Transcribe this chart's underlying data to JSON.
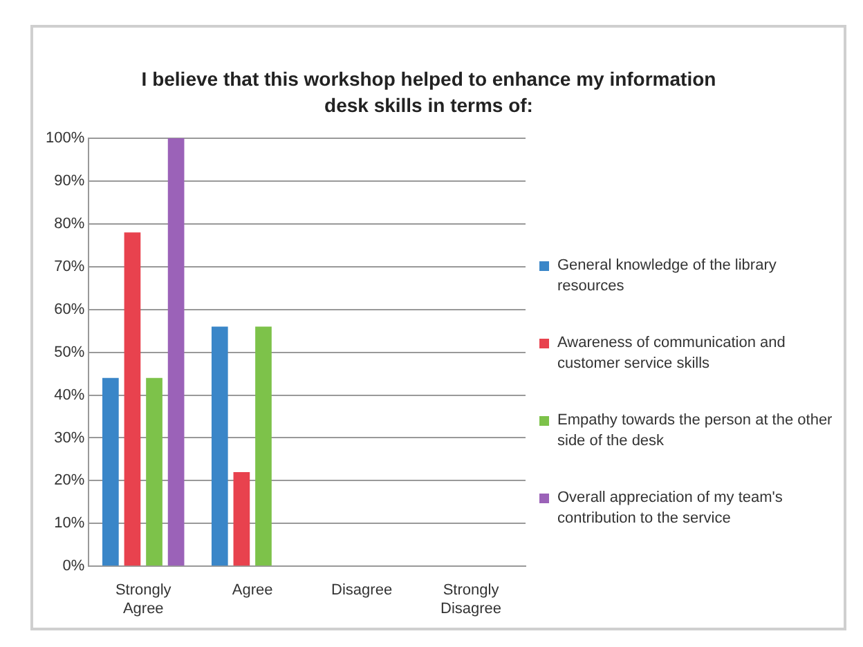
{
  "chart_data": {
    "type": "bar",
    "title": "I believe that this workshop helped to enhance my information desk skills in terms of:",
    "categories": [
      "Strongly Agree",
      "Agree",
      "Disagree",
      "Strongly Disagree"
    ],
    "series": [
      {
        "name": "General knowledge of the library resources",
        "color": "#3a86c8",
        "values": [
          44,
          56,
          0,
          0
        ]
      },
      {
        "name": "Awareness of communication and customer service skills",
        "color": "#e8424e",
        "values": [
          78,
          22,
          0,
          0
        ]
      },
      {
        "name": "Empathy towards the person at the other side of the desk",
        "color": "#7dc24a",
        "values": [
          44,
          56,
          0,
          0
        ]
      },
      {
        "name": "Overall appreciation of my team's contribution to the service",
        "color": "#9b62b8",
        "values": [
          100,
          0,
          0,
          0
        ]
      }
    ],
    "ylim": [
      0,
      100
    ],
    "yticks": [
      {
        "value": 0,
        "label": "0%"
      },
      {
        "value": 10,
        "label": "10%"
      },
      {
        "value": 20,
        "label": "20%"
      },
      {
        "value": 30,
        "label": "30%"
      },
      {
        "value": 40,
        "label": "40%"
      },
      {
        "value": 50,
        "label": "50%"
      },
      {
        "value": 60,
        "label": "60%"
      },
      {
        "value": 70,
        "label": "70%"
      },
      {
        "value": 80,
        "label": "80%"
      },
      {
        "value": 90,
        "label": "90%"
      },
      {
        "value": 100,
        "label": "100%"
      }
    ],
    "grid": "y",
    "legend": "right"
  }
}
